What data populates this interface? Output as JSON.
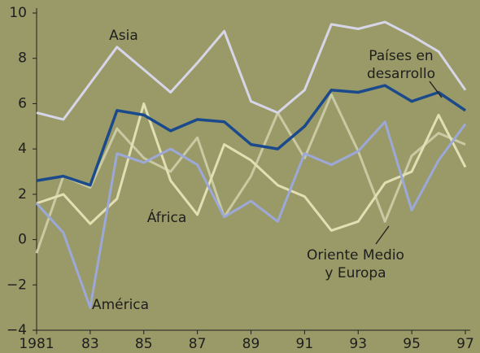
{
  "chart_data": {
    "type": "line",
    "x": [
      1981,
      1982,
      1983,
      1984,
      1985,
      1986,
      1987,
      1988,
      1989,
      1990,
      1991,
      1992,
      1993,
      1994,
      1995,
      1996,
      1997
    ],
    "series": [
      {
        "name": "Oriente Medio y Europa",
        "color": "#c9c9a3",
        "values": [
          -0.6,
          2.8,
          2.3,
          4.9,
          3.6,
          3.0,
          4.5,
          1.0,
          2.8,
          5.6,
          3.6,
          6.4,
          3.9,
          0.8,
          3.7,
          4.7,
          4.2
        ]
      },
      {
        "name": "África",
        "color": "#e2dfb4",
        "values": [
          1.6,
          2.0,
          0.7,
          1.8,
          6.0,
          2.6,
          1.1,
          4.2,
          3.5,
          2.4,
          1.9,
          0.4,
          0.8,
          2.5,
          3.0,
          5.5,
          3.2
        ]
      },
      {
        "name": "América",
        "color": "#9ca8d8",
        "values": [
          1.6,
          0.3,
          -3.0,
          3.8,
          3.4,
          4.0,
          3.3,
          1.0,
          1.7,
          0.8,
          3.8,
          3.3,
          3.9,
          5.2,
          1.3,
          3.5,
          5.1
        ]
      },
      {
        "name": "Asia",
        "color": "#d6d6e8",
        "values": [
          5.6,
          5.3,
          6.9,
          8.5,
          7.5,
          6.5,
          7.8,
          9.2,
          6.1,
          5.6,
          6.6,
          9.5,
          9.3,
          9.6,
          9.0,
          8.3,
          6.6
        ]
      },
      {
        "name": "Países en desarrollo",
        "color": "#1b4a8c",
        "values": [
          2.6,
          2.8,
          2.4,
          5.7,
          5.5,
          4.8,
          5.3,
          5.2,
          4.2,
          4.0,
          5.0,
          6.6,
          6.5,
          6.8,
          6.1,
          6.5,
          5.7
        ]
      }
    ],
    "xlim": [
      1981,
      1997
    ],
    "xticks": [
      1981,
      {
        "value": 1983,
        "label": "83"
      },
      {
        "value": 1985,
        "label": "85"
      },
      {
        "value": 1987,
        "label": "87"
      },
      {
        "value": 1989,
        "label": "89"
      },
      {
        "value": 1991,
        "label": "91"
      },
      {
        "value": 1993,
        "label": "93"
      },
      {
        "value": 1995,
        "label": "95"
      },
      {
        "value": 1997,
        "label": "97"
      }
    ],
    "ylim": [
      -4,
      10
    ],
    "yticks": [
      {
        "value": -4,
        "label": "−4"
      },
      {
        "value": -2,
        "label": "−2"
      },
      0,
      2,
      4,
      6,
      8,
      10
    ]
  }
}
